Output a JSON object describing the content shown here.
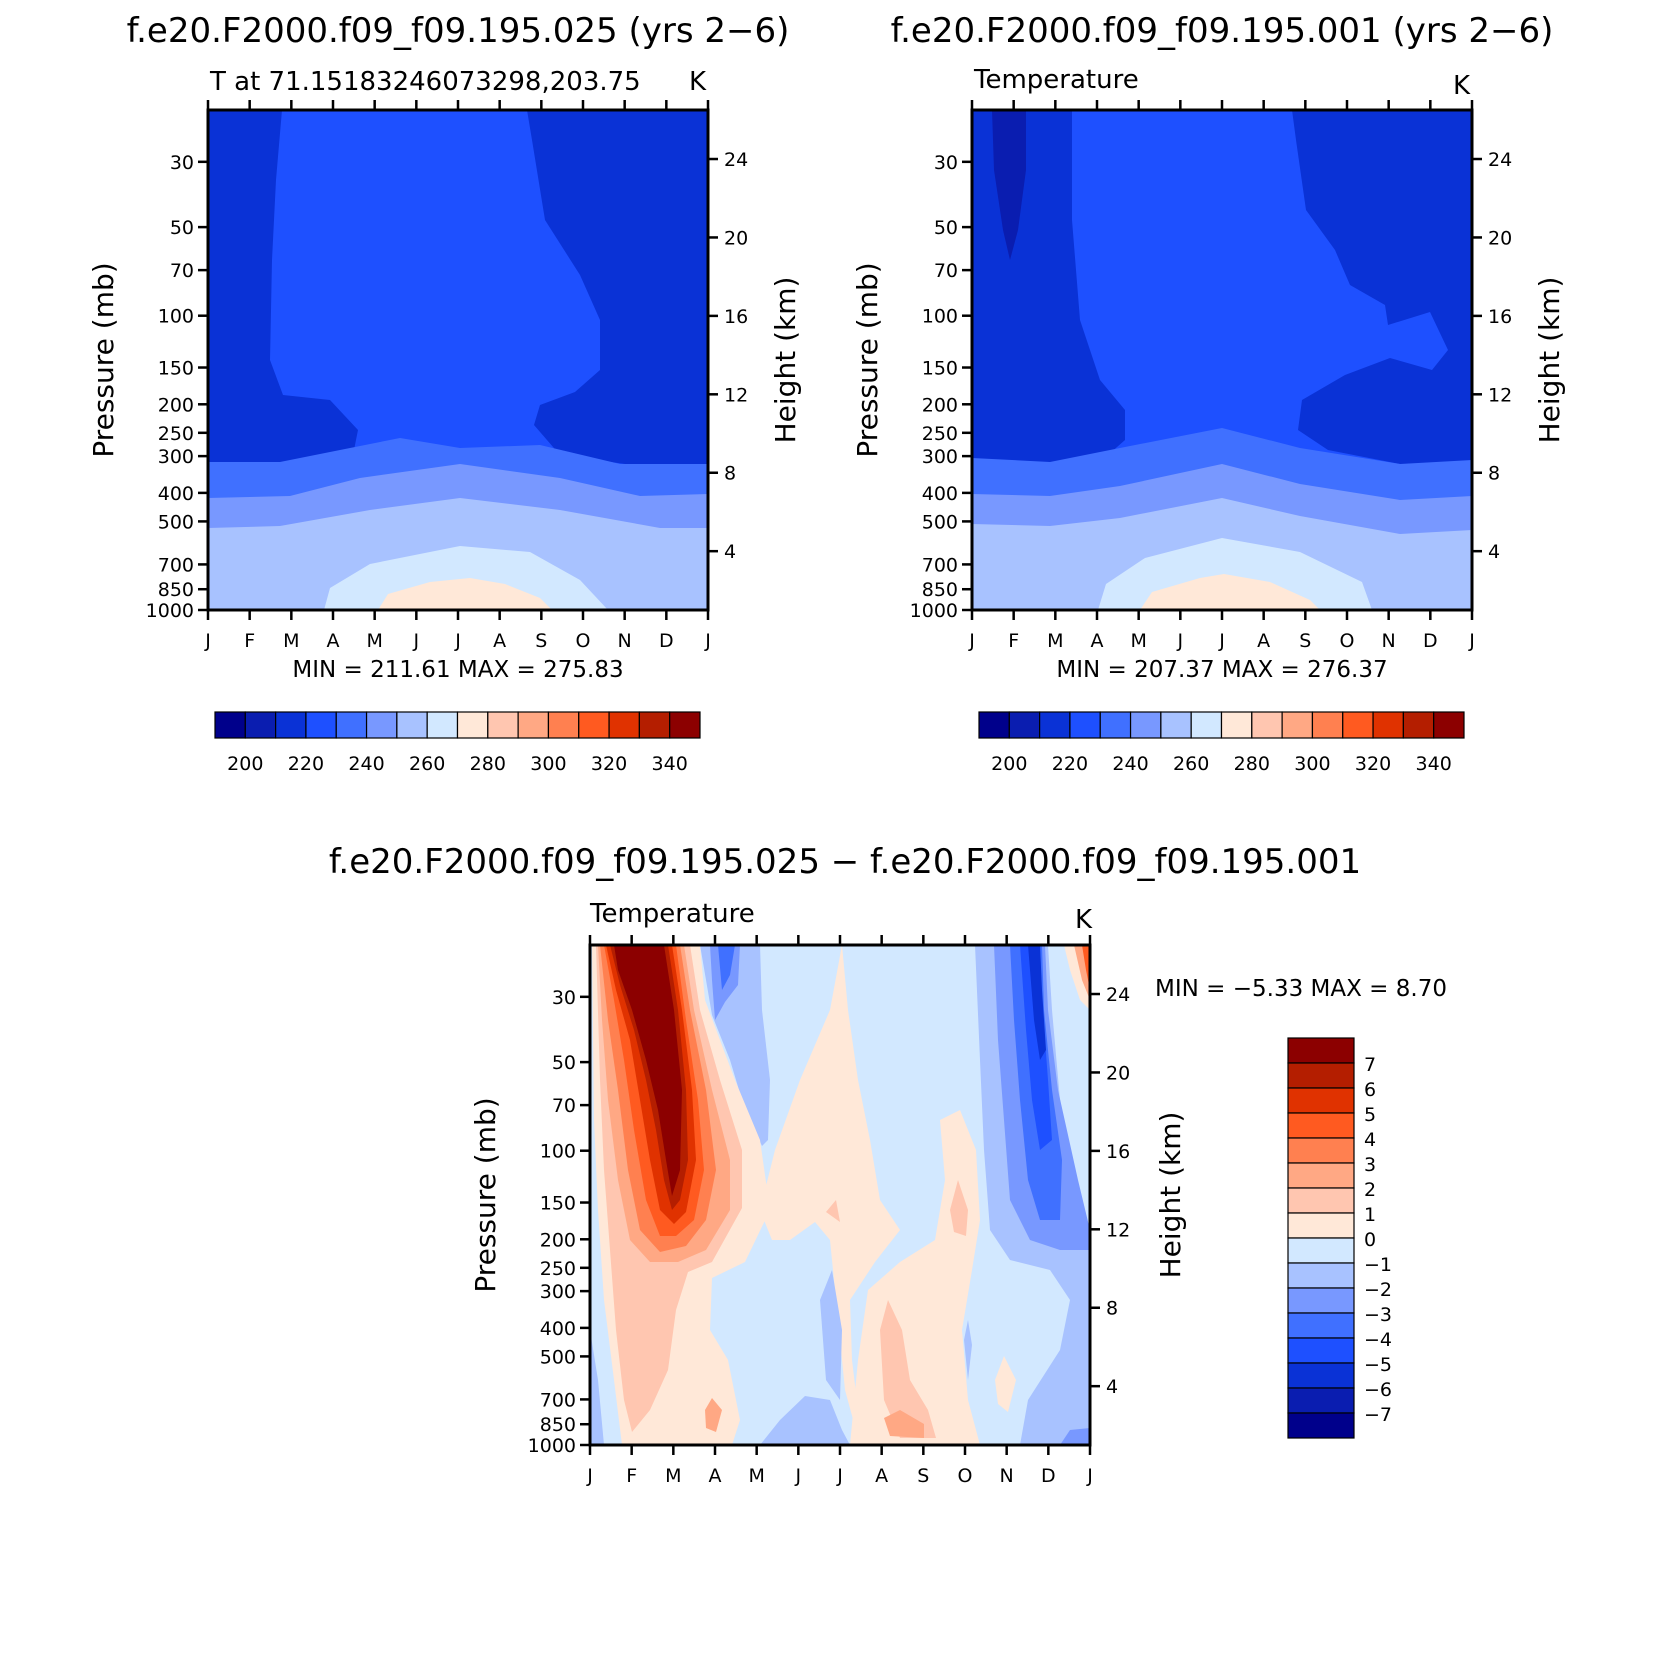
{
  "palette": {
    "cold": [
      "#00008b",
      "#0a1db0",
      "#0a32d6",
      "#1e50ff",
      "#4070ff",
      "#7898ff",
      "#a8c2ff",
      "#d2e8ff"
    ],
    "warm": [
      "#ffe8d8",
      "#ffc6b0",
      "#ffa884",
      "#ff8050",
      "#ff5a20",
      "#e03200",
      "#b41e00",
      "#8c0000"
    ]
  },
  "chart_data": [
    {
      "type": "heatmap",
      "panel": "top-left",
      "title": "f.e20.F2000.f09_f09.195.025 (yrs 2−6)",
      "subtitle_left": "T at 71.15183246073298,203.75",
      "subtitle_right": "K",
      "ylabel": "Pressure (mb)",
      "ylabel_right": "Height (km)",
      "x_ticks": [
        "J",
        "F",
        "M",
        "A",
        "M",
        "J",
        "J",
        "A",
        "S",
        "O",
        "N",
        "D",
        "J"
      ],
      "y_ticks": [
        "30",
        "50",
        "70",
        "100",
        "150",
        "200",
        "250",
        "300",
        "400",
        "500",
        "700",
        "850",
        "1000"
      ],
      "y_ticks_right": [
        "24",
        "20",
        "16",
        "12",
        "8",
        "4"
      ],
      "stats": "MIN = 211.61  MAX = 275.83",
      "colorbar_labels": [
        "200",
        "220",
        "240",
        "260",
        "280",
        "300",
        "320",
        "340"
      ]
    },
    {
      "type": "heatmap",
      "panel": "top-right",
      "title": "f.e20.F2000.f09_f09.195.001 (yrs 2−6)",
      "subtitle_left": "Temperature",
      "subtitle_right": "K",
      "ylabel": "Pressure (mb)",
      "ylabel_right": "Height (km)",
      "x_ticks": [
        "J",
        "F",
        "M",
        "A",
        "M",
        "J",
        "J",
        "A",
        "S",
        "O",
        "N",
        "D",
        "J"
      ],
      "y_ticks": [
        "30",
        "50",
        "70",
        "100",
        "150",
        "200",
        "250",
        "300",
        "400",
        "500",
        "700",
        "850",
        "1000"
      ],
      "y_ticks_right": [
        "24",
        "20",
        "16",
        "12",
        "8",
        "4"
      ],
      "stats": "MIN = 207.37  MAX = 276.37",
      "colorbar_labels": [
        "200",
        "220",
        "240",
        "260",
        "280",
        "300",
        "320",
        "340"
      ]
    },
    {
      "type": "heatmap",
      "panel": "bottom",
      "title": "f.e20.F2000.f09_f09.195.025 − f.e20.F2000.f09_f09.195.001",
      "subtitle_left": "Temperature",
      "subtitle_right": "K",
      "ylabel": "Pressure (mb)",
      "ylabel_right": "Height (km)",
      "x_ticks": [
        "J",
        "F",
        "M",
        "A",
        "M",
        "J",
        "J",
        "A",
        "S",
        "O",
        "N",
        "D",
        "J"
      ],
      "y_ticks": [
        "30",
        "50",
        "70",
        "100",
        "150",
        "200",
        "250",
        "300",
        "400",
        "500",
        "700",
        "850",
        "1000"
      ],
      "y_ticks_right": [
        "24",
        "20",
        "16",
        "12",
        "8",
        "4"
      ],
      "stats": "MIN =   −5.33 MAX =    8.70",
      "colorbar_labels": [
        "7",
        "6",
        "5",
        "4",
        "3",
        "2",
        "1",
        "0",
        "−1",
        "−2",
        "−3",
        "−4",
        "−5",
        "−6",
        "−7"
      ]
    }
  ]
}
